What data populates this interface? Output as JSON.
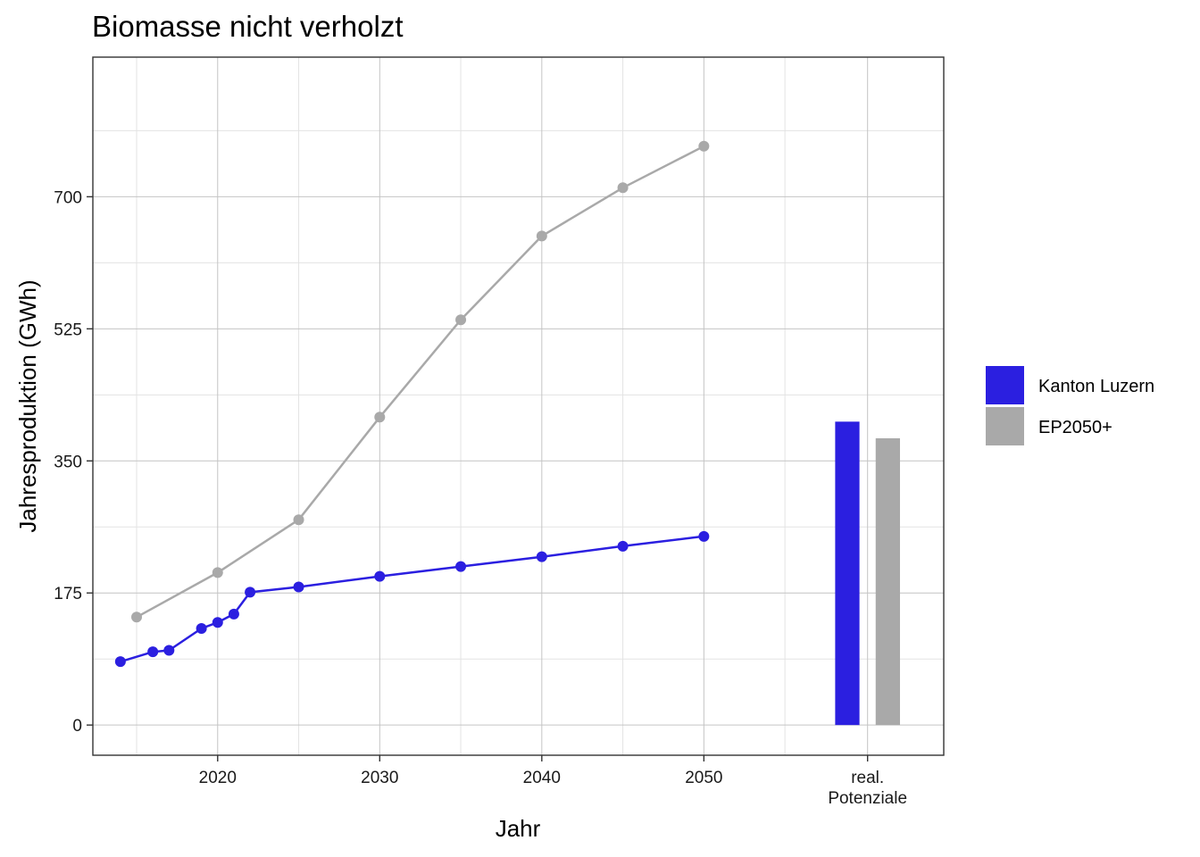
{
  "chart_data": {
    "type": "line",
    "title": "Biomasse nicht verholzt",
    "xlabel": "Jahr",
    "ylabel": "Jahresproduktion (GWh)",
    "ylim": [
      -40,
      885
    ],
    "y_ticks": [
      0,
      175,
      350,
      525,
      700
    ],
    "x_ticks": [
      2020,
      2030,
      2040,
      2050
    ],
    "x_extra_label": "real.\nPotenziale",
    "grid": true,
    "legend_position": "right",
    "series": [
      {
        "name": "Kanton Luzern",
        "color": "#2b1fe0",
        "x": [
          2014,
          2016,
          2017,
          2019,
          2020,
          2021,
          2022,
          2025,
          2030,
          2035,
          2040,
          2045,
          2050
        ],
        "values": [
          84,
          97,
          99,
          128,
          136,
          147,
          176,
          183,
          197,
          210,
          223,
          237,
          250
        ]
      },
      {
        "name": "EP2050+",
        "color": "#a9a9a9",
        "x": [
          2015,
          2020,
          2025,
          2030,
          2035,
          2040,
          2045,
          2050
        ],
        "values": [
          143,
          202,
          272,
          408,
          537,
          648,
          712,
          767
        ]
      }
    ],
    "potentials": {
      "category": "real.\nPotenziale",
      "bars": [
        {
          "name": "Kanton Luzern",
          "value": 402,
          "color": "#2b1fe0"
        },
        {
          "name": "EP2050+",
          "value": 380,
          "color": "#a9a9a9"
        }
      ]
    }
  }
}
